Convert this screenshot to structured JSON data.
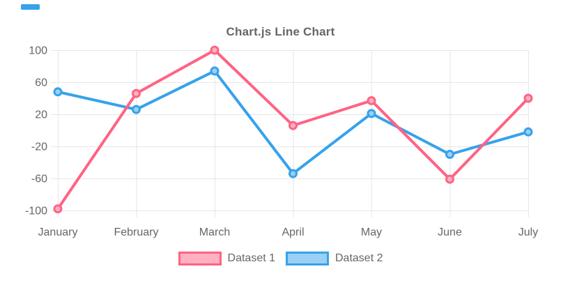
{
  "page": {
    "background": "#ffffff",
    "accent_bar_color": "#36A2EB"
  },
  "chart_data": {
    "type": "line",
    "title": "Chart.js Line Chart",
    "categories": [
      "January",
      "February",
      "March",
      "April",
      "May",
      "June",
      "July"
    ],
    "series": [
      {
        "name": "Dataset 1",
        "color": "#FF6384",
        "fill_color": "#FFB1C1",
        "values": [
          -98,
          46,
          100,
          6,
          37,
          -61,
          40
        ]
      },
      {
        "name": "Dataset 2",
        "color": "#36A2EB",
        "fill_color": "#9AD0F5",
        "values": [
          48,
          26,
          74,
          -54,
          21,
          -30,
          -2
        ]
      }
    ],
    "y_ticks": [
      100,
      60,
      20,
      -20,
      -60,
      -100
    ],
    "ylim": [
      -100,
      100
    ],
    "grid": true,
    "grid_color": "#e6e6e6",
    "tick_color": "#666666",
    "title_color": "#666666",
    "legend_position": "bottom"
  }
}
